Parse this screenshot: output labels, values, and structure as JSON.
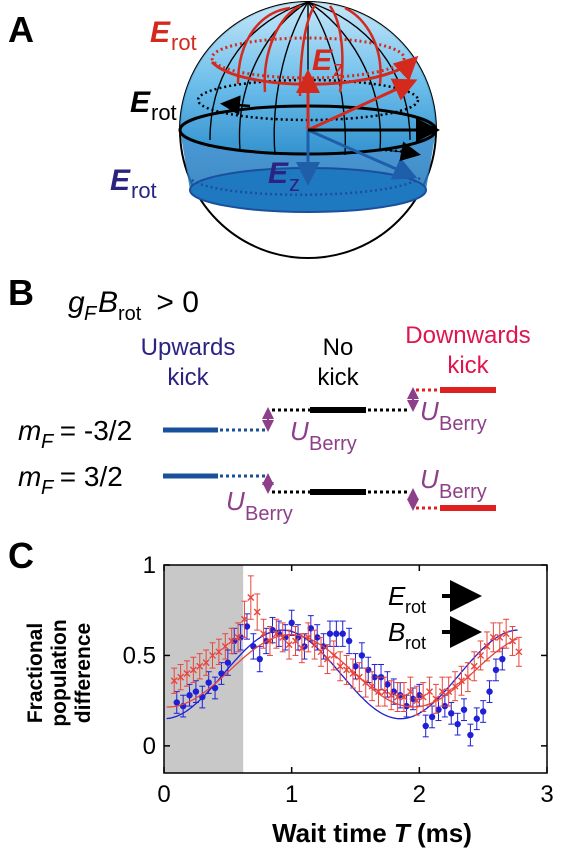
{
  "panels": {
    "a": "A",
    "b": "B",
    "c": "C"
  },
  "panel_a": {
    "erot_main": "E",
    "erot_sub": "rot",
    "ez_main": "E",
    "ez_sub": "z",
    "colors": {
      "red": "#d42a1e",
      "black": "#000000",
      "navy": "#2b2381",
      "sphere": "#3aa0de"
    }
  },
  "panel_b": {
    "cond_g": "g",
    "cond_F": "F",
    "cond_B": "B",
    "cond_rot": "rot",
    "cond_rest": " > 0",
    "upwards_1": "Upwards",
    "upwards_2": "kick",
    "no_1": "No",
    "no_2": "kick",
    "down_1": "Downwards",
    "down_2": "kick",
    "m_main": "m",
    "m_sub": "F",
    "m1_val": " = -3/2",
    "m2_val": " = 3/2",
    "u_main": "U",
    "u_sub": "Berry",
    "colors": {
      "blue": "#1a4f9c",
      "black": "#000000",
      "red": "#e0201e",
      "purple": "#8e3f8a",
      "upwards": "#2b2381",
      "downwards": "#e0154d"
    }
  },
  "panel_c": {
    "ylabel_1": "Fractional",
    "ylabel_2": "population",
    "ylabel_3": "difference",
    "xlabel_main": "Wait time ",
    "xlabel_T": "T",
    "xlabel_unit": " (ms)",
    "legend_E": "E",
    "legend_B": "B",
    "legend_sub": "rot"
  },
  "chart_data": {
    "type": "scatter",
    "xlabel": "Wait time T (ms)",
    "ylabel": "Fractional population difference",
    "xlim": [
      0,
      3
    ],
    "ylim": [
      -0.15,
      1
    ],
    "xticks": [
      "0",
      "1",
      "2",
      "3"
    ],
    "yticks": [
      "0",
      "0.5",
      "1"
    ],
    "shaded_region": [
      0,
      0.62
    ],
    "series": [
      {
        "color": "#1f1fd6",
        "marker": "dot",
        "x": [
          0.1,
          0.15,
          0.2,
          0.25,
          0.3,
          0.35,
          0.4,
          0.45,
          0.5,
          0.55,
          0.6,
          0.65,
          0.7,
          0.75,
          0.8,
          0.85,
          0.9,
          0.95,
          1.0,
          1.05,
          1.1,
          1.15,
          1.2,
          1.25,
          1.3,
          1.35,
          1.4,
          1.45,
          1.5,
          1.55,
          1.6,
          1.65,
          1.7,
          1.75,
          1.8,
          1.85,
          1.9,
          1.95,
          2.0,
          2.05,
          2.1,
          2.15,
          2.2,
          2.25,
          2.3,
          2.35,
          2.4,
          2.45,
          2.5,
          2.55,
          2.6,
          2.65
        ],
        "y": [
          0.24,
          0.22,
          0.28,
          0.3,
          0.27,
          0.35,
          0.32,
          0.4,
          0.46,
          0.58,
          0.6,
          0.66,
          0.55,
          0.48,
          0.58,
          0.64,
          0.62,
          0.6,
          0.68,
          0.6,
          0.55,
          0.65,
          0.6,
          0.55,
          0.62,
          0.62,
          0.62,
          0.58,
          0.44,
          0.5,
          0.42,
          0.38,
          0.38,
          0.34,
          0.3,
          0.28,
          0.22,
          0.26,
          0.28,
          0.11,
          0.16,
          0.2,
          0.22,
          0.18,
          0.12,
          0.2,
          0.06,
          0.15,
          0.19,
          0.3,
          0.42,
          0.48
        ],
        "err": [
          0.06,
          0.06,
          0.06,
          0.06,
          0.06,
          0.06,
          0.06,
          0.06,
          0.07,
          0.07,
          0.07,
          0.07,
          0.07,
          0.07,
          0.07,
          0.07,
          0.07,
          0.07,
          0.07,
          0.07,
          0.07,
          0.07,
          0.07,
          0.07,
          0.07,
          0.07,
          0.07,
          0.07,
          0.07,
          0.07,
          0.07,
          0.07,
          0.07,
          0.07,
          0.07,
          0.07,
          0.06,
          0.06,
          0.06,
          0.06,
          0.06,
          0.06,
          0.06,
          0.06,
          0.06,
          0.06,
          0.06,
          0.06,
          0.06,
          0.06,
          0.06,
          0.06
        ],
        "fit": {
          "A": 0.245,
          "C": 0.395,
          "f": 0.54,
          "x0": 0.0
        }
      },
      {
        "color": "#e8463c",
        "marker": "cross",
        "x": [
          0.08,
          0.13,
          0.18,
          0.23,
          0.28,
          0.33,
          0.38,
          0.43,
          0.48,
          0.53,
          0.58,
          0.63,
          0.68,
          0.73,
          0.78,
          0.83,
          0.88,
          0.93,
          0.98,
          1.03,
          1.08,
          1.13,
          1.18,
          1.23,
          1.28,
          1.33,
          1.38,
          1.43,
          1.48,
          1.53,
          1.58,
          1.63,
          1.68,
          1.73,
          1.78,
          1.83,
          1.88,
          1.93,
          1.98,
          2.03,
          2.08,
          2.13,
          2.18,
          2.23,
          2.28,
          2.33,
          2.38,
          2.43,
          2.48,
          2.53,
          2.58,
          2.63,
          2.68,
          2.73,
          2.78
        ],
        "y": [
          0.36,
          0.38,
          0.4,
          0.42,
          0.44,
          0.46,
          0.5,
          0.52,
          0.55,
          0.58,
          0.6,
          0.7,
          0.82,
          0.74,
          0.62,
          0.58,
          0.62,
          0.6,
          0.56,
          0.58,
          0.54,
          0.6,
          0.56,
          0.52,
          0.48,
          0.5,
          0.44,
          0.42,
          0.4,
          0.38,
          0.35,
          0.33,
          0.3,
          0.3,
          0.28,
          0.27,
          0.27,
          0.3,
          0.25,
          0.27,
          0.3,
          0.26,
          0.3,
          0.3,
          0.33,
          0.36,
          0.38,
          0.44,
          0.5,
          0.55,
          0.6,
          0.6,
          0.62,
          0.58,
          0.52
        ],
        "err": [
          0.07,
          0.07,
          0.07,
          0.07,
          0.07,
          0.07,
          0.07,
          0.07,
          0.07,
          0.07,
          0.08,
          0.1,
          0.12,
          0.1,
          0.08,
          0.08,
          0.08,
          0.08,
          0.08,
          0.08,
          0.08,
          0.08,
          0.08,
          0.08,
          0.08,
          0.08,
          0.08,
          0.08,
          0.08,
          0.08,
          0.08,
          0.08,
          0.08,
          0.08,
          0.08,
          0.08,
          0.08,
          0.08,
          0.08,
          0.08,
          0.08,
          0.08,
          0.08,
          0.08,
          0.08,
          0.08,
          0.08,
          0.08,
          0.08,
          0.08,
          0.08,
          0.08,
          0.08,
          0.08,
          0.08
        ],
        "fit": {
          "A": 0.2,
          "C": 0.415,
          "f": 0.52,
          "x0": 0.03
        }
      }
    ]
  }
}
